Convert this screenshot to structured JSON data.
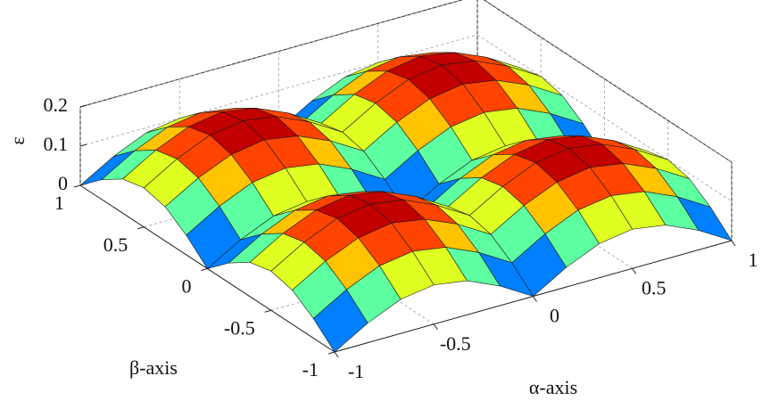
{
  "chart_data": {
    "type": "surface",
    "xlabel": "α-axis",
    "ylabel": "β-axis",
    "zlabel": "ε",
    "x": [
      -1,
      -0.833,
      -0.667,
      -0.5,
      -0.333,
      -0.167,
      0,
      0.167,
      0.333,
      0.5,
      0.667,
      0.833,
      1
    ],
    "y": [
      -1,
      -0.833,
      -0.667,
      -0.5,
      -0.333,
      -0.167,
      0,
      0.167,
      0.333,
      0.5,
      0.667,
      0.833,
      1
    ],
    "z": [
      [
        0,
        0.05,
        0.087,
        0.1,
        0.087,
        0.05,
        0,
        0.05,
        0.087,
        0.1,
        0.087,
        0.05,
        0
      ],
      [
        0.05,
        0.1,
        0.137,
        0.15,
        0.137,
        0.1,
        0.05,
        0.1,
        0.137,
        0.15,
        0.137,
        0.1,
        0.05
      ],
      [
        0.087,
        0.137,
        0.173,
        0.187,
        0.173,
        0.137,
        0.087,
        0.137,
        0.173,
        0.187,
        0.173,
        0.137,
        0.087
      ],
      [
        0.1,
        0.15,
        0.187,
        0.2,
        0.187,
        0.15,
        0.1,
        0.15,
        0.187,
        0.2,
        0.187,
        0.15,
        0.1
      ],
      [
        0.087,
        0.137,
        0.173,
        0.187,
        0.173,
        0.137,
        0.087,
        0.137,
        0.173,
        0.187,
        0.173,
        0.137,
        0.087
      ],
      [
        0.05,
        0.1,
        0.137,
        0.15,
        0.137,
        0.1,
        0.05,
        0.1,
        0.137,
        0.15,
        0.137,
        0.1,
        0.05
      ],
      [
        0,
        0.05,
        0.087,
        0.1,
        0.087,
        0.05,
        0,
        0.05,
        0.087,
        0.1,
        0.087,
        0.05,
        0
      ],
      [
        0.05,
        0.1,
        0.137,
        0.15,
        0.137,
        0.1,
        0.05,
        0.1,
        0.137,
        0.15,
        0.137,
        0.1,
        0.05
      ],
      [
        0.087,
        0.137,
        0.173,
        0.187,
        0.173,
        0.137,
        0.087,
        0.137,
        0.173,
        0.187,
        0.173,
        0.137,
        0.087
      ],
      [
        0.1,
        0.15,
        0.187,
        0.2,
        0.187,
        0.15,
        0.1,
        0.15,
        0.187,
        0.2,
        0.187,
        0.15,
        0.1
      ],
      [
        0.087,
        0.137,
        0.173,
        0.187,
        0.173,
        0.137,
        0.087,
        0.137,
        0.173,
        0.187,
        0.173,
        0.137,
        0.087
      ],
      [
        0.05,
        0.1,
        0.137,
        0.15,
        0.137,
        0.1,
        0.05,
        0.1,
        0.137,
        0.15,
        0.137,
        0.1,
        0.05
      ],
      [
        0,
        0.05,
        0.087,
        0.1,
        0.087,
        0.05,
        0,
        0.05,
        0.087,
        0.1,
        0.087,
        0.05,
        0
      ]
    ],
    "xlim": [
      -1,
      1
    ],
    "ylim": [
      -1,
      1
    ],
    "zlim": [
      0,
      0.2
    ],
    "xticks": [
      -1,
      -0.5,
      0,
      0.5,
      1
    ],
    "yticks": [
      -1,
      -0.5,
      0,
      0.5,
      1
    ],
    "zticks": [
      0,
      0.1,
      0.2
    ],
    "colormap": "jet",
    "grid": true
  }
}
